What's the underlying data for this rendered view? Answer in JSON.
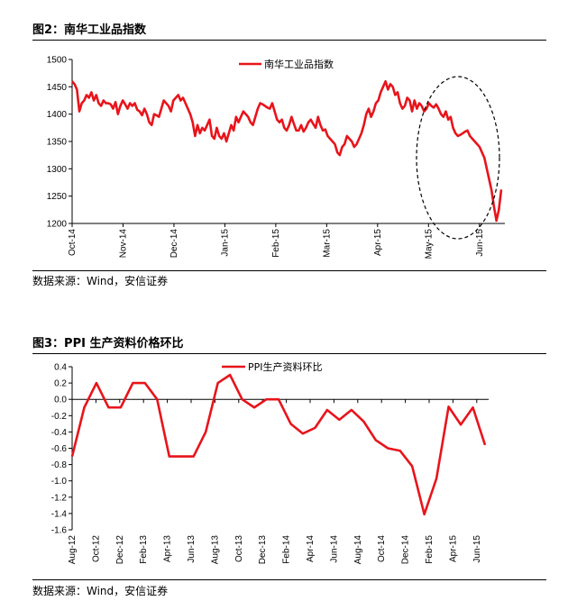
{
  "chart_data": [
    {
      "type": "line",
      "title": "图2：南华工业品指数",
      "legend": "南华工业品指数",
      "legend_position": "top-center",
      "ylim": [
        1200,
        1500
      ],
      "yticks": [
        "1500",
        "1450",
        "1400",
        "1350",
        "1300",
        "1250",
        "1200"
      ],
      "xticks": [
        "Oct-14",
        "Nov-14",
        "Dec-14",
        "Jan-15",
        "Feb-15",
        "Mar-15",
        "Apr-15",
        "May-15",
        "Jun-15"
      ],
      "color": "#e8141b",
      "annotation": "dashed-ellipse",
      "series": [
        {
          "values": [
            1460,
            1455,
            1445,
            1405,
            1420,
            1425,
            1435,
            1430,
            1440,
            1425,
            1435,
            1420,
            1415,
            1425,
            1420,
            1420,
            1418,
            1410,
            1422,
            1400,
            1415,
            1425,
            1418,
            1410,
            1420,
            1415,
            1420,
            1408,
            1405,
            1398,
            1410,
            1400,
            1385,
            1380,
            1400,
            1398,
            1395,
            1410,
            1425,
            1420,
            1415,
            1405,
            1425,
            1430,
            1435,
            1425,
            1430,
            1420,
            1410,
            1400,
            1385,
            1360,
            1380,
            1365,
            1375,
            1370,
            1380,
            1390,
            1360,
            1355,
            1375,
            1360,
            1355,
            1365,
            1350,
            1365,
            1380,
            1370,
            1395,
            1385,
            1395,
            1405,
            1400,
            1395,
            1385,
            1380,
            1395,
            1410,
            1420,
            1418,
            1415,
            1412,
            1410,
            1420,
            1405,
            1390,
            1385,
            1390,
            1375,
            1370,
            1380,
            1395,
            1382,
            1370,
            1370,
            1380,
            1368,
            1375,
            1385,
            1390,
            1382,
            1375,
            1395,
            1380,
            1370,
            1372,
            1360,
            1355,
            1350,
            1345,
            1330,
            1325,
            1340,
            1345,
            1360,
            1355,
            1350,
            1340,
            1345,
            1355,
            1365,
            1380,
            1400,
            1410,
            1395,
            1405,
            1420,
            1425,
            1440,
            1450,
            1460,
            1445,
            1455,
            1450,
            1435,
            1440,
            1420,
            1410,
            1415,
            1430,
            1425,
            1405,
            1425,
            1410,
            1420,
            1415,
            1405,
            1410,
            1420,
            1415,
            1412,
            1418,
            1410,
            1400,
            1395,
            1405,
            1390,
            1395,
            1375,
            1365,
            1360,
            1362,
            1365,
            1368,
            1370,
            1360,
            1355,
            1350,
            1345,
            1340,
            1330,
            1320,
            1300,
            1280,
            1260,
            1230,
            1205,
            1225,
            1262
          ]
        }
      ]
    },
    {
      "type": "line",
      "title": "图3：PPI 生产资料价格环比",
      "legend": "PPI生产资料环比",
      "legend_position": "top-center",
      "ylim": [
        -1.6,
        0.4
      ],
      "yticks": [
        "0.4",
        "0.2",
        "0.0",
        "-0.2",
        "-0.4",
        "-0.6",
        "-0.8",
        "-1.0",
        "-1.2",
        "-1.4",
        "-1.6"
      ],
      "xticks": [
        "Aug-12",
        "Oct-12",
        "Dec-12",
        "Feb-13",
        "Apr-13",
        "Jun-13",
        "Aug-13",
        "Oct-13",
        "Dec-13",
        "Feb-14",
        "Apr-14",
        "Jun-14",
        "Aug-14",
        "Oct-14",
        "Dec-14",
        "Feb-15",
        "Apr-15",
        "Jun-15"
      ],
      "color": "#e8141b",
      "series": [
        {
          "values": [
            -0.7,
            -0.1,
            0.2,
            -0.1,
            -0.1,
            0.2,
            0.2,
            0.0,
            -0.7,
            -0.7,
            -0.7,
            -0.4,
            0.2,
            0.3,
            0.0,
            -0.1,
            0.0,
            0.0,
            -0.3,
            -0.42,
            -0.35,
            -0.13,
            -0.25,
            -0.13,
            -0.27,
            -0.5,
            -0.6,
            -0.63,
            -0.82,
            -1.41,
            -0.97,
            -0.09,
            -0.31,
            -0.1,
            -0.56
          ]
        }
      ]
    }
  ],
  "source1": "数据来源：Wind，安信证券",
  "source2": "数据来源：Wind，安信证券"
}
